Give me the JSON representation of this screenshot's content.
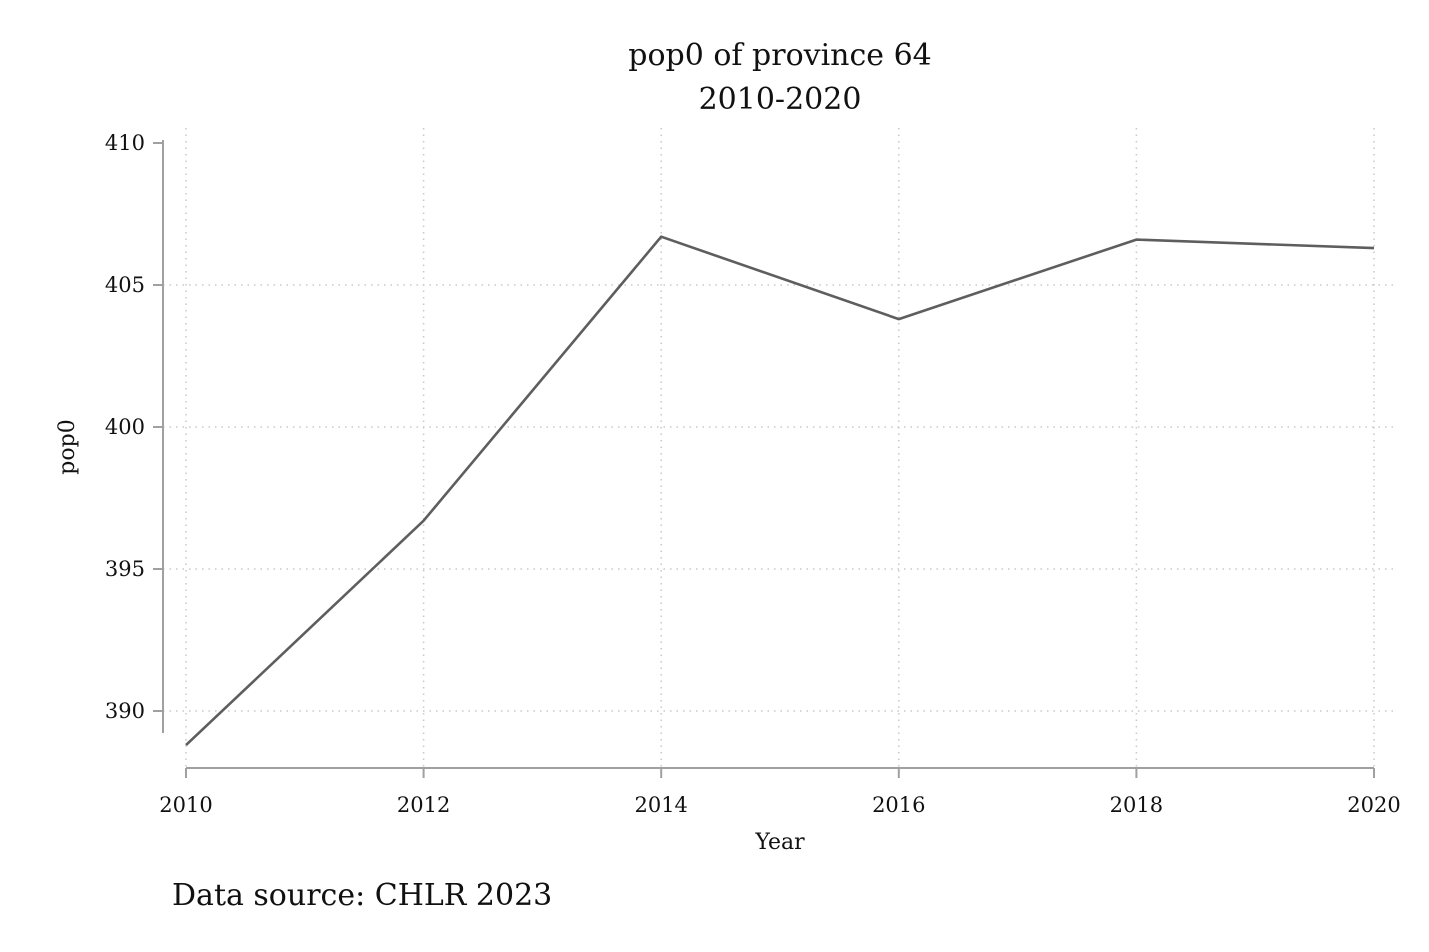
{
  "chart_data": {
    "type": "line",
    "title": "pop0 of province 64",
    "subtitle": "2010-2020",
    "xlabel": "Year",
    "ylabel": "pop0",
    "note": "Data source: CHLR 2023",
    "x": [
      2010,
      2012,
      2014,
      2016,
      2018,
      2020
    ],
    "series": [
      {
        "values": [
          388.8,
          396.7,
          406.7,
          403.8,
          406.6,
          406.3
        ]
      }
    ],
    "x_ticks": [
      "2010",
      "2012",
      "2014",
      "2016",
      "2018",
      "2020"
    ],
    "y_ticks": [
      "390",
      "395",
      "400",
      "405",
      "410"
    ],
    "xlim": [
      2010,
      2020
    ],
    "ylim": [
      388,
      410
    ],
    "grid": true,
    "legend": "none",
    "colors": {
      "line": "#5e5e5e",
      "axis": "#a0a0a0",
      "grid": "#c8c8c8"
    }
  }
}
